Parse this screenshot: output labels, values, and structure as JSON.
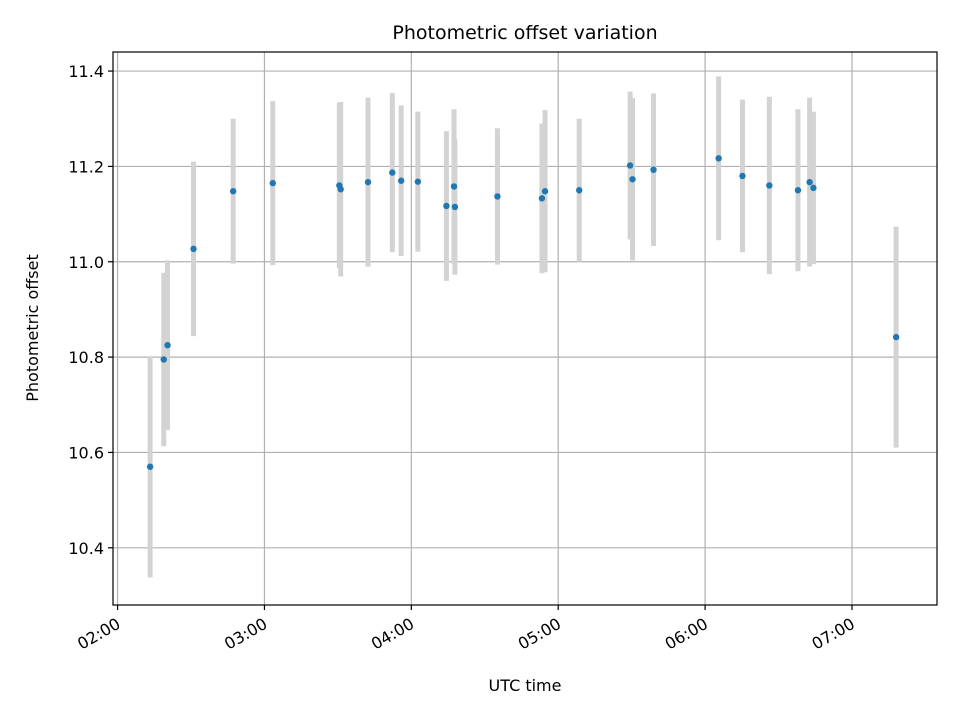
{
  "chart_data": {
    "type": "scatter",
    "title": "Photometric offset variation",
    "xlabel": "UTC time",
    "ylabel": "Photometric offset",
    "x_ticks": [
      "02:00",
      "03:00",
      "04:00",
      "05:00",
      "06:00",
      "07:00"
    ],
    "y_ticks": [
      "10.4",
      "10.6",
      "10.8",
      "11.0",
      "11.2",
      "11.4"
    ],
    "xlim": [
      "01:58:08",
      "07:34:44"
    ],
    "ylim": [
      10.28,
      11.44
    ],
    "grid": true,
    "point_color": "#1f77b4",
    "errorbar_color": "#d3d3d3",
    "points": [
      {
        "x": "02:13:18",
        "y": 10.57,
        "err": 0.232
      },
      {
        "x": "02:18:52",
        "y": 10.795,
        "err": 0.182
      },
      {
        "x": "02:20:25",
        "y": 10.825,
        "err": 0.178
      },
      {
        "x": "02:31:02",
        "y": 11.027,
        "err": 0.183
      },
      {
        "x": "02:47:13",
        "y": 11.148,
        "err": 0.152
      },
      {
        "x": "03:03:24",
        "y": 11.165,
        "err": 0.172
      },
      {
        "x": "03:30:36",
        "y": 11.16,
        "err": 0.173
      },
      {
        "x": "03:31:09",
        "y": 11.152,
        "err": 0.183
      },
      {
        "x": "03:42:18",
        "y": 11.167,
        "err": 0.177
      },
      {
        "x": "03:52:14",
        "y": 11.187,
        "err": 0.167
      },
      {
        "x": "03:55:51",
        "y": 11.17,
        "err": 0.158
      },
      {
        "x": "04:02:40",
        "y": 11.168,
        "err": 0.147
      },
      {
        "x": "04:14:20",
        "y": 11.117,
        "err": 0.157
      },
      {
        "x": "04:17:26",
        "y": 11.158,
        "err": 0.162
      },
      {
        "x": "04:17:48",
        "y": 11.115,
        "err": 0.142
      },
      {
        "x": "04:35:11",
        "y": 11.137,
        "err": 0.143
      },
      {
        "x": "04:53:21",
        "y": 11.133,
        "err": 0.157
      },
      {
        "x": "04:54:37",
        "y": 11.148,
        "err": 0.17
      },
      {
        "x": "05:08:35",
        "y": 11.15,
        "err": 0.15
      },
      {
        "x": "05:29:22",
        "y": 11.202,
        "err": 0.155
      },
      {
        "x": "05:30:21",
        "y": 11.173,
        "err": 0.17
      },
      {
        "x": "05:38:56",
        "y": 11.193,
        "err": 0.16
      },
      {
        "x": "06:05:32",
        "y": 11.217,
        "err": 0.172
      },
      {
        "x": "06:15:16",
        "y": 11.18,
        "err": 0.16
      },
      {
        "x": "06:26:15",
        "y": 11.16,
        "err": 0.186
      },
      {
        "x": "06:37:56",
        "y": 11.15,
        "err": 0.17
      },
      {
        "x": "06:42:42",
        "y": 11.167,
        "err": 0.177
      },
      {
        "x": "06:44:15",
        "y": 11.155,
        "err": 0.16
      },
      {
        "x": "07:18:02",
        "y": 10.842,
        "err": 0.232
      }
    ]
  }
}
